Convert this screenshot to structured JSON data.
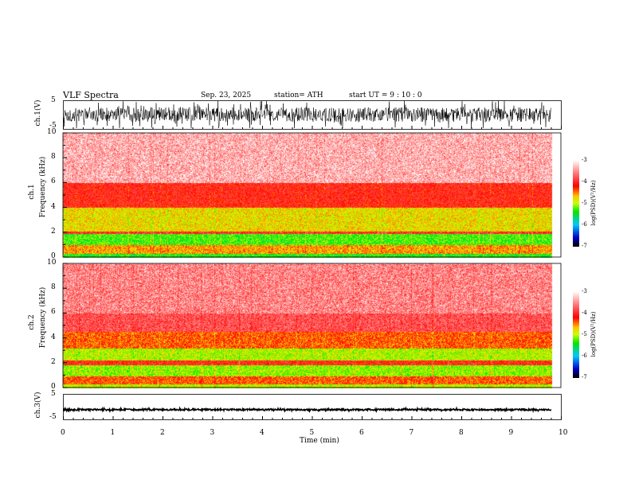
{
  "header": {
    "title": "VLF  Spectra",
    "date": "Sep. 23, 2025",
    "station": "station= ATH",
    "start": "start  UT  =   9  : 10 : 0"
  },
  "panels": {
    "ch1_wave": {
      "ylabel": "ch.1(V)",
      "ticks": [
        "5",
        "-5"
      ]
    },
    "ch1_spec": {
      "ylabel1": "ch.1",
      "ylabel2": "Frequency  (kHz)",
      "ticks": [
        "10",
        "8",
        "6",
        "4",
        "2",
        "0"
      ]
    },
    "ch2_spec": {
      "ylabel1": "ch.2",
      "ylabel2": "Frequency  (kHz)",
      "ticks": [
        "10",
        "8",
        "6",
        "4",
        "2",
        "0"
      ]
    },
    "ch3_wave": {
      "ylabel": "ch.3(V)",
      "ticks": [
        "5",
        "-5"
      ]
    }
  },
  "colorbar": {
    "label": "log(PSD)(V²/Hz)",
    "ticks": [
      "-3",
      "-4",
      "-5",
      "-6",
      "-7"
    ]
  },
  "xaxis": {
    "label": "Time  (min)",
    "ticks": [
      "0",
      "1",
      "2",
      "3",
      "4",
      "5",
      "6",
      "7",
      "8",
      "9",
      "10"
    ]
  },
  "chart_data": {
    "type": "heatmap",
    "title": "VLF Spectra",
    "xlabel": "Time (min)",
    "xlim": [
      0,
      10
    ],
    "data_end_min": 9.8,
    "ylabel": "Frequency (kHz)",
    "ylim": [
      0,
      10
    ],
    "zlabel": "log(PSD)(V²/Hz)",
    "zlim": [
      -7,
      -3
    ],
    "spectra": [
      {
        "name": "ch.1",
        "bands": [
          {
            "f": [
              0,
              0.3
            ],
            "z": -5.4
          },
          {
            "f": [
              0.3,
              1.0
            ],
            "z": -4.6
          },
          {
            "f": [
              1.0,
              1.9
            ],
            "z": -5.3
          },
          {
            "f": [
              1.9,
              2.1
            ],
            "z": -4.0
          },
          {
            "f": [
              2.1,
              4.0
            ],
            "z": -4.8
          },
          {
            "f": [
              4.0,
              6.0
            ],
            "z": -4.1
          },
          {
            "f": [
              6.0,
              10
            ],
            "z": -3.6
          }
        ]
      },
      {
        "name": "ch.2",
        "bands": [
          {
            "f": [
              0,
              0.3
            ],
            "z": -5.0
          },
          {
            "f": [
              0.3,
              0.9
            ],
            "z": -4.4
          },
          {
            "f": [
              0.9,
              1.8
            ],
            "z": -5.1
          },
          {
            "f": [
              1.8,
              2.2
            ],
            "z": -4.1
          },
          {
            "f": [
              2.2,
              3.2
            ],
            "z": -5.0
          },
          {
            "f": [
              3.2,
              4.5
            ],
            "z": -4.4
          },
          {
            "f": [
              4.5,
              10
            ],
            "z": -3.8
          }
        ]
      }
    ],
    "waveforms": [
      {
        "name": "ch.1(V)",
        "ylim": [
          -5,
          5
        ],
        "amplitude": 2.5
      },
      {
        "name": "ch.3(V)",
        "ylim": [
          -5,
          5
        ],
        "offset": -1.2,
        "amplitude": 0.3
      }
    ]
  }
}
